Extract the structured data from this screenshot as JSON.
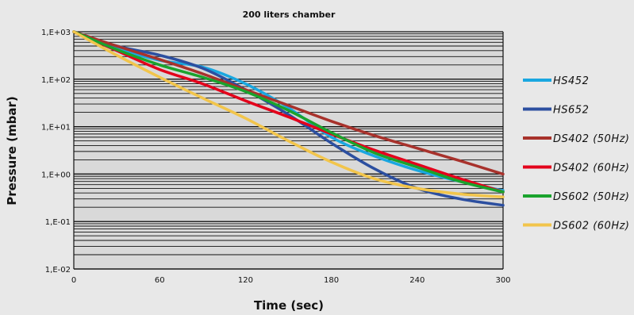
{
  "chart_data": {
    "type": "line",
    "title": "200 liters chamber",
    "xlabel": "Time (sec)",
    "ylabel": "Pressure (mbar)",
    "x_scale": "linear",
    "y_scale": "log",
    "xlim": [
      0,
      300
    ],
    "ylim": [
      0.01,
      1000
    ],
    "x_ticks": [
      0,
      60,
      120,
      180,
      240,
      300
    ],
    "x_tick_labels": [
      "0",
      "60",
      "120",
      "180",
      "240",
      "300"
    ],
    "y_ticks": [
      0.01,
      0.1,
      1,
      10,
      100,
      1000
    ],
    "y_tick_labels": [
      "1,E-02",
      "1,E-01",
      "1,E+00",
      "1,E+01",
      "1,E+02",
      "1,E+03"
    ],
    "grid": "horizontal, at every decade and sub-decade",
    "plot_background": "#d9d9d9",
    "legend_position": "right",
    "series": [
      {
        "name": "HS452",
        "color": "#1aa7e0",
        "x": [
          0,
          30,
          60,
          90,
          120,
          150,
          180,
          210,
          240,
          270,
          300
        ],
        "y": [
          1000,
          450,
          250,
          180,
          80,
          25,
          6,
          2.4,
          1.2,
          0.7,
          0.45
        ]
      },
      {
        "name": "HS652",
        "color": "#2c4fa0",
        "x": [
          0,
          30,
          60,
          90,
          120,
          150,
          180,
          210,
          240,
          270,
          300
        ],
        "y": [
          1000,
          500,
          320,
          170,
          60,
          18,
          4.5,
          1.3,
          0.5,
          0.3,
          0.22
        ]
      },
      {
        "name": "DS402 (50Hz)",
        "color": "#a8322c",
        "x": [
          0,
          30,
          60,
          90,
          120,
          150,
          180,
          210,
          240,
          270,
          300
        ],
        "y": [
          1000,
          500,
          260,
          130,
          60,
          28,
          13,
          6.5,
          3.5,
          1.9,
          1.0
        ]
      },
      {
        "name": "DS402 (60Hz)",
        "color": "#e3001b",
        "x": [
          0,
          30,
          60,
          90,
          120,
          150,
          180,
          210,
          240,
          270,
          300
        ],
        "y": [
          1000,
          400,
          160,
          80,
          35,
          16,
          7,
          3.2,
          1.6,
          0.8,
          0.42
        ]
      },
      {
        "name": "DS602 (50Hz)",
        "color": "#1aa32d",
        "x": [
          0,
          30,
          60,
          90,
          120,
          150,
          180,
          210,
          240,
          270,
          300
        ],
        "y": [
          1000,
          420,
          200,
          110,
          55,
          22,
          7.5,
          2.8,
          1.4,
          0.7,
          0.42
        ]
      },
      {
        "name": "DS602 (60Hz)",
        "color": "#f2c54b",
        "x": [
          0,
          30,
          60,
          90,
          120,
          150,
          180,
          210,
          240,
          270,
          300
        ],
        "y": [
          1000,
          320,
          110,
          40,
          15,
          5,
          1.8,
          0.8,
          0.5,
          0.38,
          0.33
        ]
      }
    ]
  }
}
